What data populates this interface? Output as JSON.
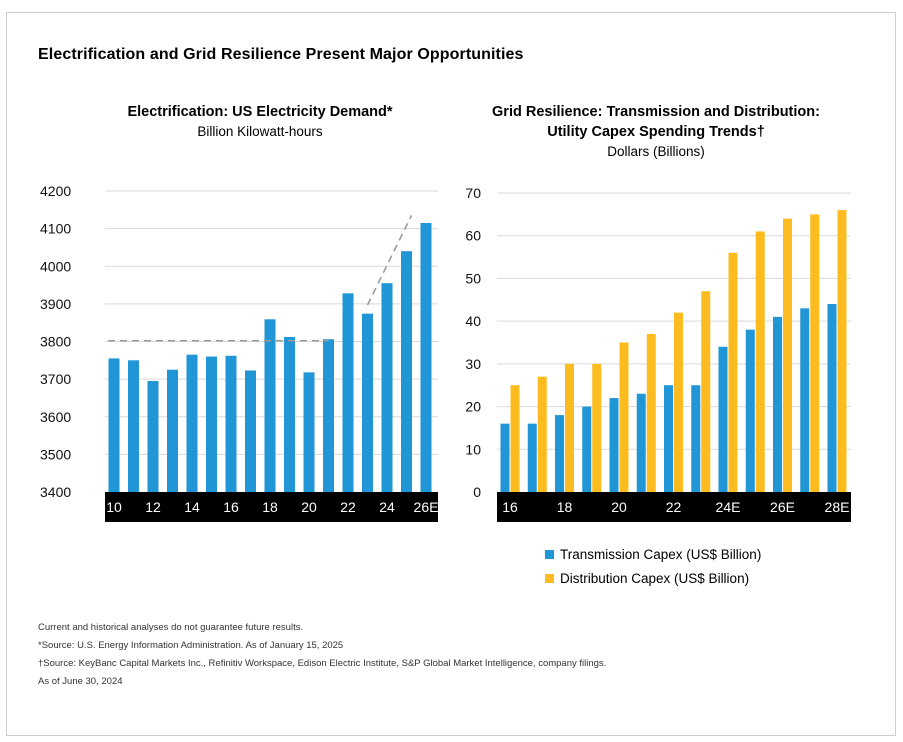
{
  "title": "Electrification and Grid Resilience Present Major Opportunities",
  "colors": {
    "blue": "#2096d6",
    "gold": "#fcbc1f",
    "axis_band": "#000000",
    "grid": "#d9d9d9",
    "trend": "#9a9a9a"
  },
  "chart_data": [
    {
      "type": "bar",
      "title": "Electrification: US Electricity Demand*",
      "subtitle": "Billion Kilowatt-hours",
      "ylim": [
        3400,
        4200
      ],
      "yticks": [
        3400,
        3500,
        3600,
        3700,
        3800,
        3900,
        4000,
        4100,
        4200
      ],
      "grid": true,
      "xtick_labels": [
        "10",
        "12",
        "14",
        "16",
        "18",
        "20",
        "22",
        "24",
        "26E"
      ],
      "categories": [
        "10",
        "11",
        "12",
        "13",
        "14",
        "15",
        "16",
        "17",
        "18",
        "19",
        "20",
        "21",
        "22",
        "23",
        "24",
        "25",
        "26E"
      ],
      "values": [
        3755,
        3750,
        3695,
        3725,
        3765,
        3760,
        3762,
        3723,
        3859,
        3812,
        3718,
        3806,
        3928,
        3874,
        3955,
        4040,
        4115
      ],
      "trend_lines": [
        {
          "from": [
            "10",
            3802
          ],
          "to": [
            "21",
            3802
          ],
          "style": "dashed"
        },
        {
          "from": [
            "23",
            3897
          ],
          "to": [
            "25",
            4135
          ],
          "style": "dashed"
        }
      ]
    },
    {
      "type": "bar",
      "title": "Grid Resilience: Transmission and Distribution: Utility Capex Spending Trends†",
      "title_lines": [
        "Grid Resilience: Transmission and Distribution:",
        "Utility Capex Spending Trends†"
      ],
      "subtitle": "Dollars (Billions)",
      "ylim": [
        0,
        70
      ],
      "yticks": [
        0,
        10,
        20,
        30,
        40,
        50,
        60,
        70
      ],
      "grid": true,
      "legend_position": "bottom",
      "xtick_labels": [
        "16",
        "18",
        "20",
        "22",
        "24E",
        "26E",
        "28E"
      ],
      "categories": [
        "16",
        "17",
        "18",
        "19",
        "20",
        "21",
        "22",
        "23",
        "24E",
        "25E",
        "26E",
        "27E",
        "28E"
      ],
      "series": [
        {
          "name": "Transmission Capex (US$ Billion)",
          "color": "#2096d6",
          "values": [
            16,
            16,
            18,
            20,
            22,
            23,
            25,
            25,
            34,
            38,
            41,
            43,
            44
          ]
        },
        {
          "name": "Distribution Capex (US$ Billion)",
          "color": "#fcbc1f",
          "values": [
            25,
            27,
            30,
            30,
            35,
            37,
            42,
            47,
            56,
            61,
            64,
            65,
            66
          ]
        }
      ]
    }
  ],
  "footnotes": [
    "Current and historical analyses do not guarantee future results.",
    "*Source: U.S. Energy Information Administration. As of January 15, 2025",
    "†Source: KeyBanc Capital Markets Inc., Refinitiv Workspace, Edison Electric Institute, S&P Global Market Intelligence, company filings.",
    "As of June 30, 2024"
  ]
}
